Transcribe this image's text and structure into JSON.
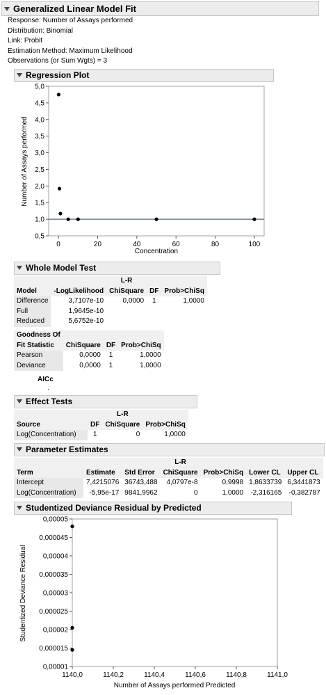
{
  "title": "Generalized Linear Model Fit",
  "info": [
    "Response: Number of Assays performed",
    "Distribution: Binomial",
    "Link: Probit",
    "Estimation Method: Maximum Likelihood",
    "Observations (or Sum Wgts) = 3"
  ],
  "sections": {
    "regression_plot": "Regression Plot",
    "whole_model_test": "Whole Model Test",
    "effect_tests": "Effect Tests",
    "parameter_estimates": "Parameter Estimates",
    "studentized": "Studentized Deviance Residual by Predicted"
  },
  "whole_model": {
    "header_top": "L-R",
    "headers": [
      "Model",
      "-LogLikelihood",
      "ChiSquare",
      "DF",
      "Prob>ChiSq"
    ],
    "rows": [
      [
        "Difference",
        "3,7107e-10",
        "0,0000",
        "1",
        "1,0000"
      ],
      [
        "Full",
        "1,9645e-10",
        "",
        "",
        ""
      ],
      [
        "Reduced",
        "5,6752e-10",
        "",
        "",
        ""
      ]
    ],
    "gof_headers_line1": [
      "Goodness Of",
      "",
      "",
      ""
    ],
    "gof_headers": [
      "Fit Statistic",
      "ChiSquare",
      "DF",
      "Prob>ChiSq"
    ],
    "gof_rows": [
      [
        "Pearson",
        "0,0000",
        "1",
        "1,0000"
      ],
      [
        "Deviance",
        "0,0000",
        "1",
        "1,0000"
      ]
    ],
    "aicc_label": "AICc",
    "aicc_value": "."
  },
  "effect_tests": {
    "header_top": "L-R",
    "headers": [
      "Source",
      "DF",
      "ChiSquare",
      "Prob>ChiSq"
    ],
    "rows": [
      [
        "Log(Concentration)",
        "1",
        "0",
        "1,0000"
      ]
    ]
  },
  "parameter_estimates": {
    "header_top": "L-R",
    "headers": [
      "Term",
      "Estimate",
      "Std Error",
      "ChiSquare",
      "Prob>ChiSq",
      "Lower CL",
      "Upper CL"
    ],
    "rows": [
      [
        "Intercept",
        "7,4215076",
        "36743,488",
        "4,0797e-8",
        "0,9998",
        "1,8633739",
        "6,3441873"
      ],
      [
        "Log(Concentration)",
        "-5,95e-17",
        "9841,9962",
        "0",
        "1,0000",
        "-2,316165",
        "-0,382787"
      ]
    ]
  },
  "chart_data": [
    {
      "type": "scatter",
      "title": "Regression Plot",
      "xlabel": "Concentration",
      "ylabel": "Number of Assays performed",
      "xlim": [
        -5,
        105
      ],
      "ylim": [
        0.5,
        5.0
      ],
      "x_ticks": [
        "0",
        "20",
        "40",
        "60",
        "80",
        "100"
      ],
      "x_tick_values": [
        0,
        20,
        40,
        60,
        80,
        100
      ],
      "y_ticks": [
        "0,5",
        "1,0",
        "1,5",
        "2,0",
        "2,5",
        "3,0",
        "3,5",
        "4,0",
        "4,5",
        "5,0"
      ],
      "y_tick_values": [
        0.5,
        1.0,
        1.5,
        2.0,
        2.5,
        3.0,
        3.5,
        4.0,
        4.5,
        5.0
      ],
      "points": [
        {
          "x": 0.1,
          "y": 4.75
        },
        {
          "x": 0.5,
          "y": 1.92
        },
        {
          "x": 1,
          "y": 1.17
        },
        {
          "x": 5,
          "y": 1.0
        },
        {
          "x": 10,
          "y": 1.0
        },
        {
          "x": 50,
          "y": 1.0
        },
        {
          "x": 100,
          "y": 1.0
        }
      ],
      "fit_line": {
        "y": 1.0,
        "color": "#3a6ea5"
      },
      "grid": false
    },
    {
      "type": "scatter",
      "title": "Studentized Deviance Residual by Predicted",
      "xlabel": "Number of Assays performed Predicted",
      "ylabel": "Studentized Deviance Residual",
      "xlim": [
        1140.0,
        1141.0
      ],
      "ylim": [
        1e-05,
        5e-05
      ],
      "x_ticks": [
        "1140,0",
        "1140,2",
        "1140,4",
        "1140,6",
        "1140,8",
        "1141,0"
      ],
      "x_tick_values": [
        1140.0,
        1140.2,
        1140.4,
        1140.6,
        1140.8,
        1141.0
      ],
      "y_ticks": [
        "0,00001",
        "0,000015",
        "0,00002",
        "0,000025",
        "0,00003",
        "0,000035",
        "0,00004",
        "0,000045",
        "0,00005"
      ],
      "y_tick_values": [
        1e-05,
        1.5e-05,
        2e-05,
        2.5e-05,
        3e-05,
        3.5e-05,
        4e-05,
        4.5e-05,
        5e-05
      ],
      "points": [
        {
          "x": 1140.0,
          "y": 4.8e-05
        },
        {
          "x": 1140.0,
          "y": 2.05e-05
        },
        {
          "x": 1140.0,
          "y": 1.45e-05
        }
      ],
      "grid": false
    }
  ]
}
